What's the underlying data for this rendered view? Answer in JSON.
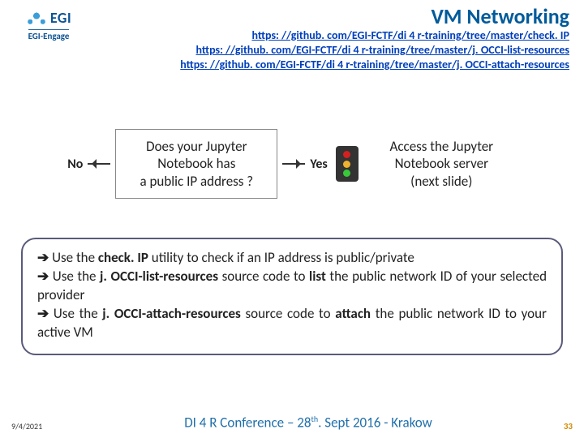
{
  "logo": {
    "brand": "EGI",
    "sub": "EGI-Engage"
  },
  "title": "VM Networking",
  "links": [
    "https: //github. com/EGI-FCTF/di 4 r-training/tree/master/check. IP",
    "https: //github. com/EGI-FCTF/di 4 r-training/tree/master/j. OCCI-list-resources",
    "https: //github. com/EGI-FCTF/di 4 r-training/tree/master/j. OCCI-attach-resources"
  ],
  "flow": {
    "no_label": "No",
    "yes_label": "Yes",
    "decision_l1": "Does your Jupyter",
    "decision_l2": "Notebook has",
    "decision_l3": "a public IP address ?",
    "action_l1": "Access the Jupyter",
    "action_l2": "Notebook server",
    "action_l3": "(next slide)"
  },
  "traffic_colors": {
    "red": "#d42020",
    "amber": "#f0b030",
    "green": "#38c838"
  },
  "info": {
    "l1_pre": "  Use the ",
    "l1_b": "check. IP",
    "l1_post": " utility to check if an IP address is public/private",
    "l2_pre": "  Use the ",
    "l2_b": "j. OCCI-list-resources",
    "l2_mid": " source code to ",
    "l2_b2": "list",
    "l2_post": " the public network ID of your selected provider",
    "l3_pre": " Use the ",
    "l3_b": "j. OCCI-attach-resources",
    "l3_mid": " source code to ",
    "l3_b2": "attach",
    "l3_post": " the public network ID to your active VM"
  },
  "footer": {
    "date": "9/4/2021",
    "center_pre": "DI 4 R Conference – 28",
    "center_sup": "th",
    "center_post": ". Sept 2016 - Krakow",
    "page": "33"
  }
}
